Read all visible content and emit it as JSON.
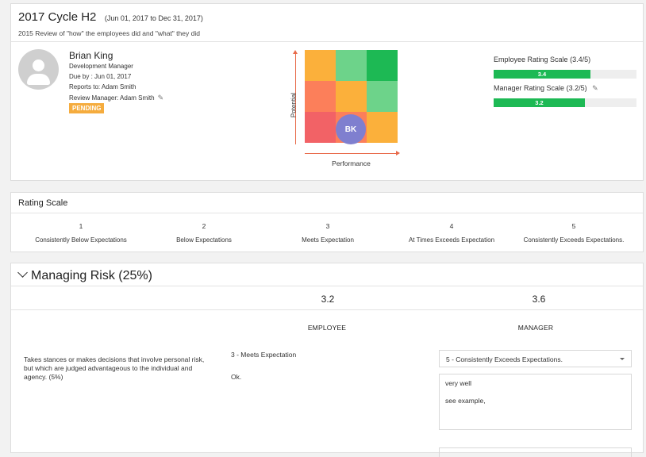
{
  "header": {
    "cycle_title": "2017 Cycle H2",
    "date_range": "(Jun 01, 2017 to Dec 31, 2017)",
    "subtitle": "2015 Review of \"how\" the employees did and \"what\" they did"
  },
  "employee": {
    "name": "Brian King",
    "role": "Development Manager",
    "due_by": "Due by : Jun 01, 2017",
    "reports_to": "Reports to: Adam Smith",
    "review_manager": "Review Manager: Adam Smith",
    "status": "PENDING",
    "initials": "BK",
    "avatar_icon": "user-avatar-icon",
    "edit_icon": "pencil-icon"
  },
  "matrix": {
    "x_label": "Performance",
    "y_label": "Potential",
    "cells": [
      [
        "#fbb03b",
        "#6dd38a",
        "#1db954"
      ],
      [
        "#fc7f5a",
        "#fbb03b",
        "#6dd38a"
      ],
      [
        "#f26266",
        "#fc7f5a",
        "#fbb03b"
      ]
    ],
    "marker_color": "#7f7fcf"
  },
  "scores": {
    "employee_label": "Employee Rating Scale",
    "employee_fraction": "(3.4/5)",
    "employee_value": 3.4,
    "employee_text": "3.4",
    "manager_label": "Manager Rating Scale",
    "manager_fraction": "(3.2/5)",
    "manager_value": 3.2,
    "manager_text": "3.2",
    "max": 5,
    "bar_color": "#1db954"
  },
  "rating_scale": {
    "title": "Rating Scale",
    "levels": [
      {
        "num": "1",
        "desc": "Consistently Below Expectations"
      },
      {
        "num": "2",
        "desc": "Below Expectations"
      },
      {
        "num": "3",
        "desc": "Meets Expectation"
      },
      {
        "num": "4",
        "desc": "At Times Exceeds Expectation"
      },
      {
        "num": "5",
        "desc": "Consistently Exceeds Expectations."
      }
    ]
  },
  "section": {
    "title": "Managing Risk (25%)",
    "employee_score": "3.2",
    "manager_score": "3.6",
    "employee_col": "EMPLOYEE",
    "manager_col": "MANAGER",
    "question": "Takes stances or makes decisions that involve personal risk, but which are judged advantageous to the individual and agency. (5%)",
    "employee_answer": "3 - Meets Expectation",
    "employee_comment": "Ok.",
    "manager_select": "5 - Consistently Exceeds Expectations.",
    "manager_comment_line1": "very well",
    "manager_comment_line2": "see example,"
  }
}
